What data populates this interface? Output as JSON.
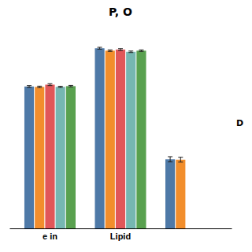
{
  "chart_data": {
    "type": "bar",
    "title": "P, O",
    "categories": [
      "e in",
      "Lipid",
      null
    ],
    "series": [
      {
        "values": [
          0.76,
          0.965,
          0.37
        ],
        "errors": [
          0.005,
          0.005,
          0.014
        ]
      },
      {
        "values": [
          0.758,
          0.952,
          0.368
        ],
        "errors": [
          0.004,
          0.004,
          0.013
        ]
      },
      {
        "values": [
          0.77,
          0.958,
          null
        ],
        "errors": [
          0.005,
          0.005,
          null
        ]
      },
      {
        "values": [
          0.758,
          0.946,
          null
        ],
        "errors": [
          0.003,
          0.004,
          null
        ]
      },
      {
        "values": [
          0.762,
          0.952,
          null
        ],
        "errors": [
          0.004,
          0.004,
          null
        ]
      }
    ],
    "annotations": [
      "D"
    ],
    "ylim": [
      0,
      1.08
    ],
    "tick_labels": "x"
  }
}
